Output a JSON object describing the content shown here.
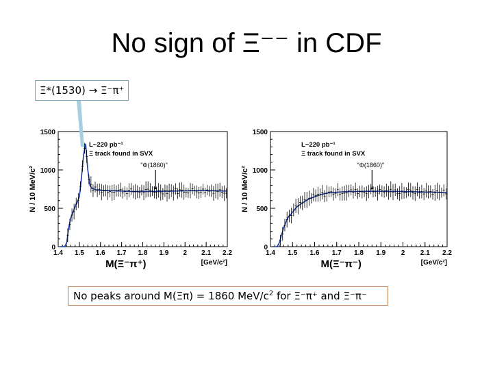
{
  "slide": {
    "title": "No sign of Ξ⁻⁻ in CDF",
    "callout": "Ξ*(1530) → Ξ⁻π⁺",
    "footer_prefix": "No peaks around M(Ξπ) = 1860 MeV/c",
    "footer_sup": "2",
    "footer_suffix": " for Ξ⁻π⁺ and Ξ⁻π⁻"
  },
  "colors": {
    "curve": "#1a3aa8",
    "callout_border": "#7aa9bd",
    "footer_border": "#b57a4e",
    "arrow": "#a6cfe0"
  },
  "chart_data": [
    {
      "type": "line",
      "xlabel": "M(Ξ⁻π⁺)",
      "xunit": "[GeV/c²]",
      "ylabel": "N / 10 MeV/c²",
      "xlim": [
        1.4,
        2.2
      ],
      "ylim": [
        0,
        1500
      ],
      "xticks": [
        "1.4",
        "1.5",
        "1.6",
        "1.7",
        "1.8",
        "1.9",
        "2",
        "2.1",
        "2.2"
      ],
      "yticks": [
        "0",
        "500",
        "1000",
        "1500"
      ],
      "annotations": [
        "L~220 pb⁻¹",
        "Ξ track found in SVX",
        "\"Φ(1860)\""
      ],
      "arrow_x": 1.86,
      "x": [
        1.41,
        1.42,
        1.43,
        1.44,
        1.45,
        1.46,
        1.47,
        1.48,
        1.49,
        1.5,
        1.51,
        1.52,
        1.53,
        1.54,
        1.55,
        1.56,
        1.58,
        1.6,
        1.62,
        1.65,
        1.7,
        1.75,
        1.8,
        1.85,
        1.9,
        1.95,
        2.0,
        2.05,
        2.1,
        2.15,
        2.2
      ],
      "y": [
        0,
        0,
        0,
        50,
        250,
        380,
        450,
        520,
        580,
        650,
        900,
        1200,
        1340,
        1000,
        800,
        760,
        740,
        735,
        730,
        730,
        725,
        720,
        720,
        720,
        722,
        725,
        728,
        730,
        730,
        728,
        725
      ]
    },
    {
      "type": "line",
      "xlabel": "M(Ξ⁻π⁻)",
      "xunit": "[GeV/c²]",
      "ylabel": "N / 10 MeV/c²",
      "xlim": [
        1.4,
        2.2
      ],
      "ylim": [
        0,
        1500
      ],
      "xticks": [
        "1.4",
        "1.5",
        "1.6",
        "1.7",
        "1.8",
        "1.9",
        "2",
        "2.1",
        "2.2"
      ],
      "yticks": [
        "0",
        "500",
        "1000",
        "1500"
      ],
      "annotations": [
        "L~220 pb⁻¹",
        "Ξ track found in SVX",
        "\"Φ(1860)\""
      ],
      "arrow_x": 1.86,
      "x": [
        1.41,
        1.42,
        1.43,
        1.44,
        1.45,
        1.46,
        1.47,
        1.48,
        1.5,
        1.52,
        1.55,
        1.58,
        1.6,
        1.63,
        1.66,
        1.7,
        1.75,
        1.8,
        1.85,
        1.9,
        1.95,
        2.0,
        2.05,
        2.1,
        2.15,
        2.2
      ],
      "y": [
        0,
        0,
        0,
        50,
        150,
        250,
        320,
        380,
        450,
        520,
        580,
        630,
        650,
        680,
        700,
        710,
        718,
        720,
        722,
        722,
        720,
        718,
        716,
        712,
        710,
        705
      ]
    }
  ]
}
